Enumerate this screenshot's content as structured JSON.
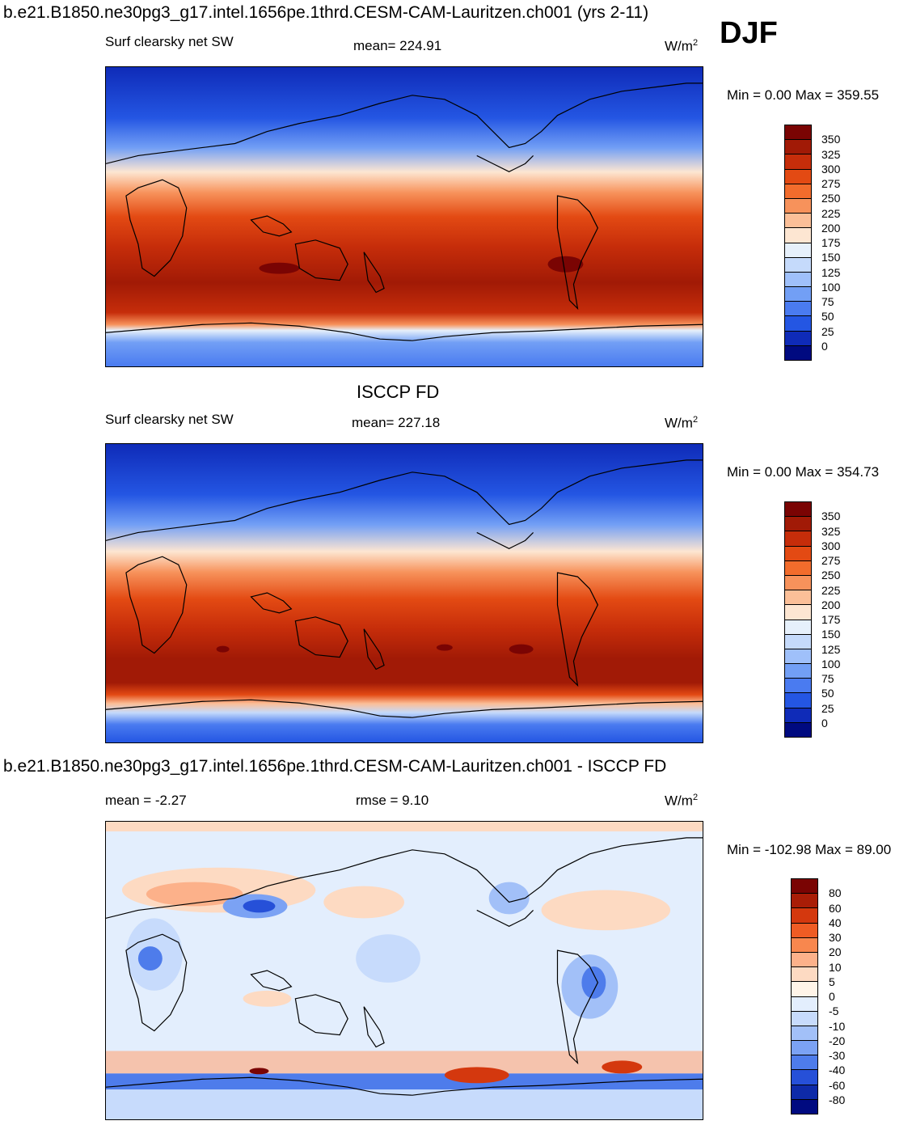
{
  "header": {
    "title": "b.e21.B1850.ne30pg3_g17.intel.1656pe.1thrd.CESM-CAM-Lauritzen.ch001 (yrs 2-11)",
    "season": "DJF"
  },
  "panel1": {
    "field": "Surf clearsky net SW",
    "mean": "mean= 224.91",
    "units": "W/m",
    "minmax": "Min =    0.00 Max = 359.55",
    "levels": [
      "350",
      "325",
      "300",
      "275",
      "250",
      "225",
      "200",
      "175",
      "150",
      "125",
      "100",
      "75",
      "50",
      "25",
      "0"
    ]
  },
  "panel2": {
    "dataset": "ISCCP FD",
    "field": "Surf clearsky net SW",
    "mean": "mean= 227.18",
    "units": "W/m",
    "minmax": "Min =    0.00 Max = 354.73",
    "levels": [
      "350",
      "325",
      "300",
      "275",
      "250",
      "225",
      "200",
      "175",
      "150",
      "125",
      "100",
      "75",
      "50",
      "25",
      "0"
    ]
  },
  "panel3": {
    "title": "b.e21.B1850.ne30pg3_g17.intel.1656pe.1thrd.CESM-CAM-Lauritzen.ch001 - ISCCP FD",
    "mean": "mean =  -2.27",
    "rmse": "rmse =    9.10",
    "units": "W/m",
    "minmax": "Min = -102.98 Max =  89.00",
    "levels": [
      "80",
      "60",
      "40",
      "30",
      "20",
      "10",
      "5",
      "0",
      "-5",
      "-10",
      "-20",
      "-30",
      "-40",
      "-60",
      "-80"
    ]
  },
  "colors": {
    "abs_scale": [
      "#7a0403",
      "#a11a06",
      "#c62d0a",
      "#e34a13",
      "#f26c2c",
      "#f7925b",
      "#fbbf98",
      "#fde6d2",
      "#e6f0fb",
      "#c5dafb",
      "#9fc0fa",
      "#729ff5",
      "#4a7bf0",
      "#2456e3",
      "#0f2bb8",
      "#000a80"
    ],
    "diff_scale": [
      "#7a0403",
      "#a91d07",
      "#d4380e",
      "#ef5c24",
      "#f8874e",
      "#fcb18a",
      "#fddac2",
      "#fff4e8",
      "#e3eefd",
      "#c7dbfc",
      "#a2c0f8",
      "#7ba2f4",
      "#4e7ceb",
      "#2650d8",
      "#0e2aa8",
      "#000a80"
    ]
  }
}
